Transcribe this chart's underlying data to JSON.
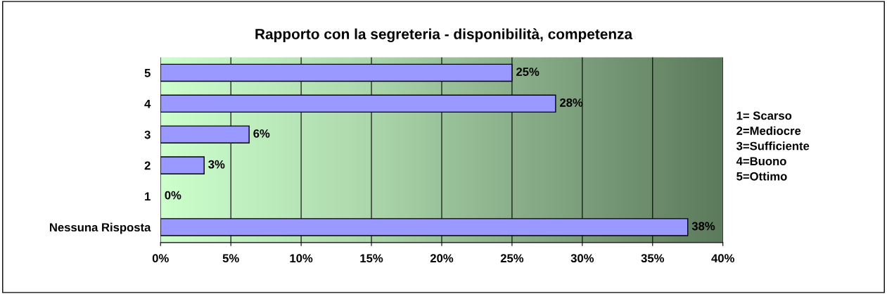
{
  "chart_data": {
    "type": "bar",
    "orientation": "horizontal",
    "title": "Rapporto con la segreteria - disponibilità, competenza",
    "categories": [
      "5",
      "4",
      "3",
      "2",
      "1",
      "Nessuna Risposta"
    ],
    "values": [
      25,
      28.1,
      6.3,
      3.1,
      0,
      37.5
    ],
    "value_labels": [
      "25%",
      "28%",
      "6%",
      "3%",
      "0%",
      "38%"
    ],
    "color": "#9999ff",
    "xlim": [
      0,
      40
    ],
    "xticks": [
      {
        "value": 0,
        "label": "0%"
      },
      {
        "value": 5,
        "label": "5%"
      },
      {
        "value": 10,
        "label": "10%"
      },
      {
        "value": 15,
        "label": "15%"
      },
      {
        "value": 20,
        "label": "20%"
      },
      {
        "value": 25,
        "label": "25%"
      },
      {
        "value": 30,
        "label": "30%"
      },
      {
        "value": 35,
        "label": "35%"
      },
      {
        "value": 40,
        "label": "40%"
      }
    ],
    "grid": "x",
    "annotations": [
      "1= Scarso\n2=Mediocre\n3=Sufficiente\n4=Buono\n5=Ottimo"
    ]
  }
}
